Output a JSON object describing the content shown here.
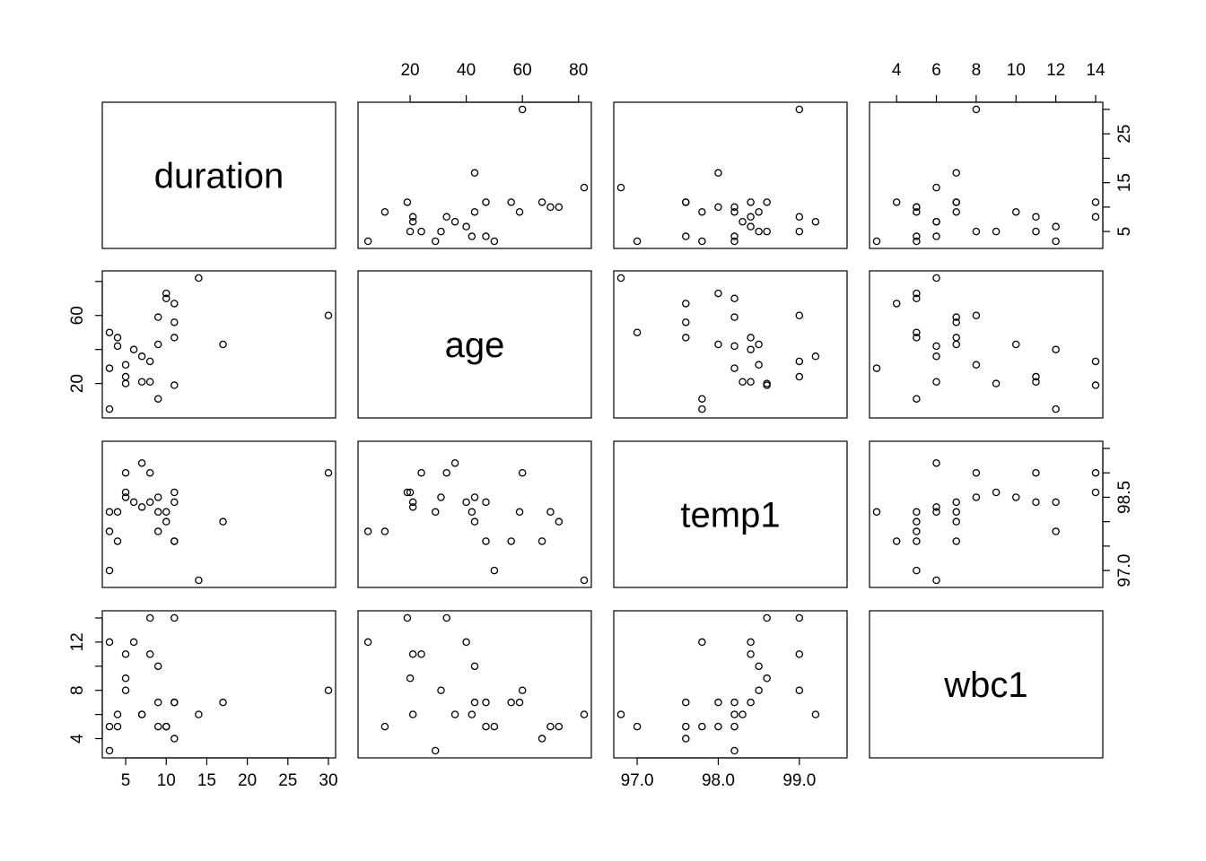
{
  "chart_data": {
    "type": "scatter",
    "subtype": "scatterplot-matrix",
    "variables": [
      "duration",
      "age",
      "temp1",
      "wbc1"
    ],
    "ticks": {
      "duration": [
        5,
        10,
        15,
        20,
        25,
        30
      ],
      "age": [
        20,
        40,
        60,
        80
      ],
      "temp1": [
        97.0,
        98.0,
        99.0
      ],
      "wbc1": [
        4,
        6,
        8,
        10,
        12,
        14
      ]
    },
    "tick_labels": {
      "duration": [
        "5",
        "10",
        "15",
        "20",
        "25",
        "30"
      ],
      "duration_right": [
        "5",
        "15",
        "25"
      ],
      "age": [
        "20",
        "40",
        "60",
        "80"
      ],
      "age_left": [
        "20",
        "60"
      ],
      "temp1": [
        "97.0",
        "98.0",
        "99.0"
      ],
      "temp1_right": [
        "97.0",
        "98.5"
      ],
      "wbc1": [
        "4",
        "6",
        "8",
        "10",
        "12",
        "14"
      ],
      "wbc1_left": [
        "4",
        "8",
        "12"
      ]
    },
    "ranges": {
      "duration": [
        3,
        30
      ],
      "age": [
        4,
        82
      ],
      "temp1": [
        96.8,
        99.5
      ],
      "wbc1": [
        3,
        14
      ]
    },
    "points": [
      {
        "duration": 30,
        "age": 60,
        "temp1": 99.0,
        "wbc1": 8
      },
      {
        "duration": 17,
        "age": 43,
        "temp1": 98.0,
        "wbc1": 7
      },
      {
        "duration": 14,
        "age": 82,
        "temp1": 96.8,
        "wbc1": 6
      },
      {
        "duration": 11,
        "age": 19,
        "temp1": 98.6,
        "wbc1": 14
      },
      {
        "duration": 11,
        "age": 56,
        "temp1": 97.6,
        "wbc1": 7
      },
      {
        "duration": 11,
        "age": 67,
        "temp1": 97.6,
        "wbc1": 4
      },
      {
        "duration": 11,
        "age": 47,
        "temp1": 98.4,
        "wbc1": 7
      },
      {
        "duration": 10,
        "age": 73,
        "temp1": 98.0,
        "wbc1": 5
      },
      {
        "duration": 10,
        "age": 70,
        "temp1": 98.2,
        "wbc1": 5
      },
      {
        "duration": 9,
        "age": 59,
        "temp1": 98.2,
        "wbc1": 7
      },
      {
        "duration": 9,
        "age": 43,
        "temp1": 98.5,
        "wbc1": 10
      },
      {
        "duration": 9,
        "age": 11,
        "temp1": 97.8,
        "wbc1": 5
      },
      {
        "duration": 8,
        "age": 33,
        "temp1": 99.0,
        "wbc1": 14
      },
      {
        "duration": 8,
        "age": 21,
        "temp1": 98.4,
        "wbc1": 11
      },
      {
        "duration": 7,
        "age": 36,
        "temp1": 99.2,
        "wbc1": 6
      },
      {
        "duration": 7,
        "age": 21,
        "temp1": 98.3,
        "wbc1": 6
      },
      {
        "duration": 6,
        "age": 40,
        "temp1": 98.4,
        "wbc1": 12
      },
      {
        "duration": 5,
        "age": 24,
        "temp1": 99.0,
        "wbc1": 11
      },
      {
        "duration": 5,
        "age": 31,
        "temp1": 98.5,
        "wbc1": 8
      },
      {
        "duration": 5,
        "age": 20,
        "temp1": 98.6,
        "wbc1": 9
      },
      {
        "duration": 4,
        "age": 42,
        "temp1": 98.2,
        "wbc1": 6
      },
      {
        "duration": 4,
        "age": 47,
        "temp1": 97.6,
        "wbc1": 5
      },
      {
        "duration": 3,
        "age": 50,
        "temp1": 97.0,
        "wbc1": 5
      },
      {
        "duration": 3,
        "age": 5,
        "temp1": 97.8,
        "wbc1": 12
      },
      {
        "duration": 3,
        "age": 29,
        "temp1": 98.2,
        "wbc1": 3
      }
    ]
  }
}
